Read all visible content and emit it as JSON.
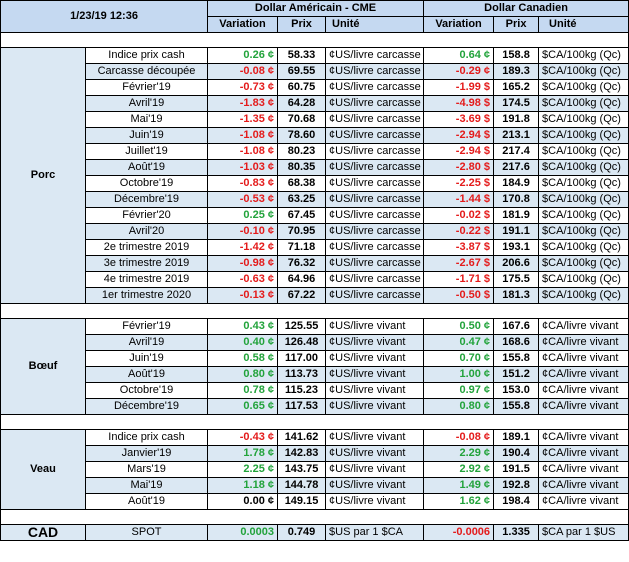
{
  "header": {
    "date": "1/23/19 12:36",
    "usd_title": "Dollar Américain - CME",
    "cad_title": "Dollar Canadien",
    "col_variation": "Variation",
    "col_prix": "Prix",
    "col_unite": "Unité"
  },
  "porc": {
    "label": "Porc",
    "rows": [
      {
        "item": "Indice prix cash",
        "usd_var": "0.26 ¢",
        "usd_prix": "58.33",
        "usd_unit": "¢US/livre carcasse",
        "cad_var": "0.64 ¢",
        "cad_prix": "158.8",
        "cad_unit": "$CA/100kg (Qc)"
      },
      {
        "item": "Carcasse découpée",
        "usd_var": "-0.08 ¢",
        "usd_prix": "69.55",
        "usd_unit": "¢US/livre carcasse",
        "cad_var": "-0.29 ¢",
        "cad_prix": "189.3",
        "cad_unit": "$CA/100kg (Qc)"
      },
      {
        "item": "Février'19",
        "usd_var": "-0.73 ¢",
        "usd_prix": "60.75",
        "usd_unit": "¢US/livre carcasse",
        "cad_var": "-1.99 $",
        "cad_prix": "165.2",
        "cad_unit": "$CA/100kg (Qc)"
      },
      {
        "item": "Avril'19",
        "usd_var": "-1.83 ¢",
        "usd_prix": "64.28",
        "usd_unit": "¢US/livre carcasse",
        "cad_var": "-4.98 $",
        "cad_prix": "174.5",
        "cad_unit": "$CA/100kg (Qc)"
      },
      {
        "item": "Mai'19",
        "usd_var": "-1.35 ¢",
        "usd_prix": "70.68",
        "usd_unit": "¢US/livre carcasse",
        "cad_var": "-3.69 $",
        "cad_prix": "191.8",
        "cad_unit": "$CA/100kg (Qc)"
      },
      {
        "item": "Juin'19",
        "usd_var": "-1.08 ¢",
        "usd_prix": "78.60",
        "usd_unit": "¢US/livre carcasse",
        "cad_var": "-2.94 $",
        "cad_prix": "213.1",
        "cad_unit": "$CA/100kg (Qc)"
      },
      {
        "item": "Juillet'19",
        "usd_var": "-1.08 ¢",
        "usd_prix": "80.23",
        "usd_unit": "¢US/livre carcasse",
        "cad_var": "-2.94 $",
        "cad_prix": "217.4",
        "cad_unit": "$CA/100kg (Qc)"
      },
      {
        "item": "Août'19",
        "usd_var": "-1.03 ¢",
        "usd_prix": "80.35",
        "usd_unit": "¢US/livre carcasse",
        "cad_var": "-2.80 $",
        "cad_prix": "217.6",
        "cad_unit": "$CA/100kg (Qc)"
      },
      {
        "item": "Octobre'19",
        "usd_var": "-0.83 ¢",
        "usd_prix": "68.38",
        "usd_unit": "¢US/livre carcasse",
        "cad_var": "-2.25 $",
        "cad_prix": "184.9",
        "cad_unit": "$CA/100kg (Qc)"
      },
      {
        "item": "Décembre'19",
        "usd_var": "-0.53 ¢",
        "usd_prix": "63.25",
        "usd_unit": "¢US/livre carcasse",
        "cad_var": "-1.44 $",
        "cad_prix": "170.8",
        "cad_unit": "$CA/100kg (Qc)"
      },
      {
        "item": "Février'20",
        "usd_var": "0.25 ¢",
        "usd_prix": "67.45",
        "usd_unit": "¢US/livre carcasse",
        "cad_var": "-0.02 $",
        "cad_prix": "181.9",
        "cad_unit": "$CA/100kg (Qc)"
      },
      {
        "item": "Avril'20",
        "usd_var": "-0.10 ¢",
        "usd_prix": "70.95",
        "usd_unit": "¢US/livre carcasse",
        "cad_var": "-0.22 $",
        "cad_prix": "191.1",
        "cad_unit": "$CA/100kg (Qc)"
      },
      {
        "item": "2e trimestre 2019",
        "usd_var": "-1.42 ¢",
        "usd_prix": "71.18",
        "usd_unit": "¢US/livre carcasse",
        "cad_var": "-3.87 $",
        "cad_prix": "193.1",
        "cad_unit": "$CA/100kg (Qc)"
      },
      {
        "item": "3e trimestre 2019",
        "usd_var": "-0.98 ¢",
        "usd_prix": "76.32",
        "usd_unit": "¢US/livre carcasse",
        "cad_var": "-2.67 $",
        "cad_prix": "206.6",
        "cad_unit": "$CA/100kg (Qc)"
      },
      {
        "item": "4e trimestre 2019",
        "usd_var": "-0.63 ¢",
        "usd_prix": "64.96",
        "usd_unit": "¢US/livre carcasse",
        "cad_var": "-1.71 $",
        "cad_prix": "175.5",
        "cad_unit": "$CA/100kg (Qc)"
      },
      {
        "item": "1er trimestre 2020",
        "usd_var": "-0.13 ¢",
        "usd_prix": "67.22",
        "usd_unit": "¢US/livre carcasse",
        "cad_var": "-0.50 $",
        "cad_prix": "181.3",
        "cad_unit": "$CA/100kg (Qc)"
      }
    ]
  },
  "boeuf": {
    "label": "Bœuf",
    "rows": [
      {
        "item": "Février'19",
        "usd_var": "0.43 ¢",
        "usd_prix": "125.55",
        "usd_unit": "¢US/livre vivant",
        "cad_var": "0.50 ¢",
        "cad_prix": "167.6",
        "cad_unit": "¢CA/livre vivant"
      },
      {
        "item": "Avril'19",
        "usd_var": "0.40 ¢",
        "usd_prix": "126.48",
        "usd_unit": "¢US/livre vivant",
        "cad_var": "0.47 ¢",
        "cad_prix": "168.6",
        "cad_unit": "¢CA/livre vivant"
      },
      {
        "item": "Juin'19",
        "usd_var": "0.58 ¢",
        "usd_prix": "117.00",
        "usd_unit": "¢US/livre vivant",
        "cad_var": "0.70 ¢",
        "cad_prix": "155.8",
        "cad_unit": "¢CA/livre vivant"
      },
      {
        "item": "Août'19",
        "usd_var": "0.80 ¢",
        "usd_prix": "113.73",
        "usd_unit": "¢US/livre vivant",
        "cad_var": "1.00 ¢",
        "cad_prix": "151.2",
        "cad_unit": "¢CA/livre vivant"
      },
      {
        "item": "Octobre'19",
        "usd_var": "0.78 ¢",
        "usd_prix": "115.23",
        "usd_unit": "¢US/livre vivant",
        "cad_var": "0.97 ¢",
        "cad_prix": "153.0",
        "cad_unit": "¢CA/livre vivant"
      },
      {
        "item": "Décembre'19",
        "usd_var": "0.65 ¢",
        "usd_prix": "117.53",
        "usd_unit": "¢US/livre vivant",
        "cad_var": "0.80 ¢",
        "cad_prix": "155.8",
        "cad_unit": "¢CA/livre vivant"
      }
    ]
  },
  "veau": {
    "label": "Veau",
    "rows": [
      {
        "item": "Indice prix cash",
        "usd_var": "-0.43 ¢",
        "usd_prix": "141.62",
        "usd_unit": "¢US/livre vivant",
        "cad_var": "-0.08 ¢",
        "cad_prix": "189.1",
        "cad_unit": "¢CA/livre vivant"
      },
      {
        "item": "Janvier'19",
        "usd_var": "1.78 ¢",
        "usd_prix": "142.83",
        "usd_unit": "¢US/livre vivant",
        "cad_var": "2.29 ¢",
        "cad_prix": "190.4",
        "cad_unit": "¢CA/livre vivant"
      },
      {
        "item": "Mars'19",
        "usd_var": "2.25 ¢",
        "usd_prix": "143.75",
        "usd_unit": "¢US/livre vivant",
        "cad_var": "2.92 ¢",
        "cad_prix": "191.5",
        "cad_unit": "¢CA/livre vivant"
      },
      {
        "item": "Mai'19",
        "usd_var": "1.18 ¢",
        "usd_prix": "144.78",
        "usd_unit": "¢US/livre vivant",
        "cad_var": "1.49 ¢",
        "cad_prix": "192.8",
        "cad_unit": "¢CA/livre vivant"
      },
      {
        "item": "Août'19",
        "usd_var": "0.00 ¢",
        "usd_prix": "149.15",
        "usd_unit": "¢US/livre vivant",
        "cad_var": "1.62 ¢",
        "cad_prix": "198.4",
        "cad_unit": "¢CA/livre vivant"
      }
    ]
  },
  "cad": {
    "label": "CAD",
    "item": "SPOT",
    "usd_var": "0.0003",
    "usd_prix": "0.749",
    "usd_unit": "$US par 1 $CA",
    "cad_var": "-0.0006",
    "cad_prix": "1.335",
    "cad_unit": "$CA par 1 $US"
  },
  "colors": {
    "header_bg": "#c5d9f1",
    "band_bg": "#dbe8f3",
    "positive": "#22a33b",
    "negative": "#e41b1b"
  }
}
